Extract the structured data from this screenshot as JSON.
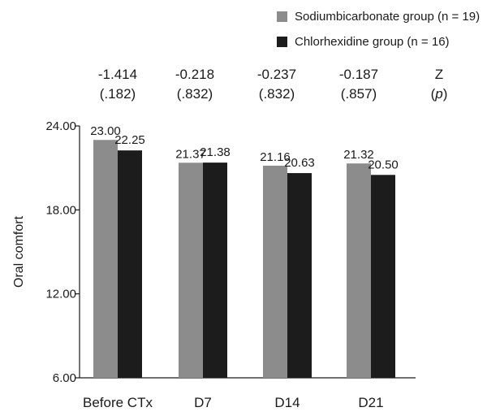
{
  "chart_data": {
    "type": "bar",
    "categories": [
      "Before CTx",
      "D7",
      "D14",
      "D21"
    ],
    "series": [
      {
        "name": "Sodiumbicarbonate group (n = 19)",
        "values": [
          23.0,
          21.37,
          21.16,
          21.32
        ],
        "labels": [
          "23.00",
          "21.37",
          "21.16",
          "21.32"
        ],
        "color": "#8c8c8c"
      },
      {
        "name": "Chlorhexidine group (n = 16)",
        "values": [
          22.25,
          21.38,
          20.63,
          20.5
        ],
        "labels": [
          "22.25",
          "21.38",
          "20.63",
          "20.50"
        ],
        "color": "#1c1c1c"
      }
    ],
    "ylabel": "Oral comfort",
    "xlabel": "",
    "ylim": [
      6,
      24
    ],
    "yticks": [
      6,
      12,
      18,
      24
    ],
    "ytick_labels": [
      "6.00",
      "12.00",
      "18.00",
      "24.00"
    ],
    "grid": false,
    "legend_position": "top-right",
    "stats": {
      "z_values": [
        "-1.414",
        "-0.218",
        "-0.237",
        "-0.187"
      ],
      "p_values": [
        "(.182)",
        "(.832)",
        "(.832)",
        "(.857)"
      ],
      "z_label": "Z",
      "p_label_open": "(",
      "p_label_var": "p",
      "p_label_close": ")"
    }
  }
}
